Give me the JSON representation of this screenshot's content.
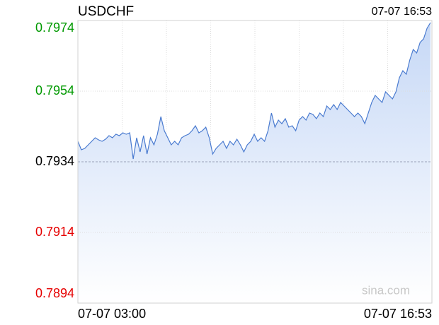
{
  "chart_data": {
    "type": "line",
    "title": "USDCHF",
    "time_label": "07-07 16:53",
    "x_labels": [
      "07-07 03:00",
      "07-07 16:53"
    ],
    "watermark": "sina.com",
    "ylim": [
      0.7894,
      0.7974
    ],
    "yticks": [
      0.7894,
      0.7914,
      0.7934,
      0.7954,
      0.7974
    ],
    "reference": 0.7934,
    "color": "#4a7bd0",
    "up_color": "#009900",
    "down_color": "#e60000",
    "grid": true,
    "values": [
      0.79398,
      0.79374,
      0.79378,
      0.79388,
      0.79398,
      0.79408,
      0.79402,
      0.79398,
      0.79404,
      0.79414,
      0.79408,
      0.79418,
      0.79414,
      0.79422,
      0.79418,
      0.79422,
      0.79348,
      0.79408,
      0.79368,
      0.79414,
      0.79362,
      0.79408,
      0.79388,
      0.79418,
      0.79468,
      0.79428,
      0.79408,
      0.79388,
      0.79398,
      0.79388,
      0.79408,
      0.79414,
      0.79418,
      0.79428,
      0.79442,
      0.79422,
      0.79428,
      0.79438,
      0.79408,
      0.79362,
      0.79378,
      0.79388,
      0.79398,
      0.79378,
      0.79398,
      0.79388,
      0.79404,
      0.79388,
      0.79368,
      0.79388,
      0.79398,
      0.79418,
      0.79398,
      0.79408,
      0.79398,
      0.79428,
      0.79478,
      0.79438,
      0.79458,
      0.79448,
      0.79462,
      0.79438,
      0.79442,
      0.79428,
      0.79458,
      0.79468,
      0.79458,
      0.79478,
      0.79474,
      0.79462,
      0.79478,
      0.79468,
      0.79498,
      0.79488,
      0.79502,
      0.79488,
      0.79508,
      0.79498,
      0.79488,
      0.79478,
      0.79468,
      0.79478,
      0.79468,
      0.79448,
      0.79478,
      0.79508,
      0.79528,
      0.79518,
      0.79508,
      0.79538,
      0.79528,
      0.79518,
      0.79538,
      0.79578,
      0.79598,
      0.79588,
      0.79628,
      0.79658,
      0.79648,
      0.79678,
      0.79688,
      0.79718,
      0.79734
    ]
  }
}
